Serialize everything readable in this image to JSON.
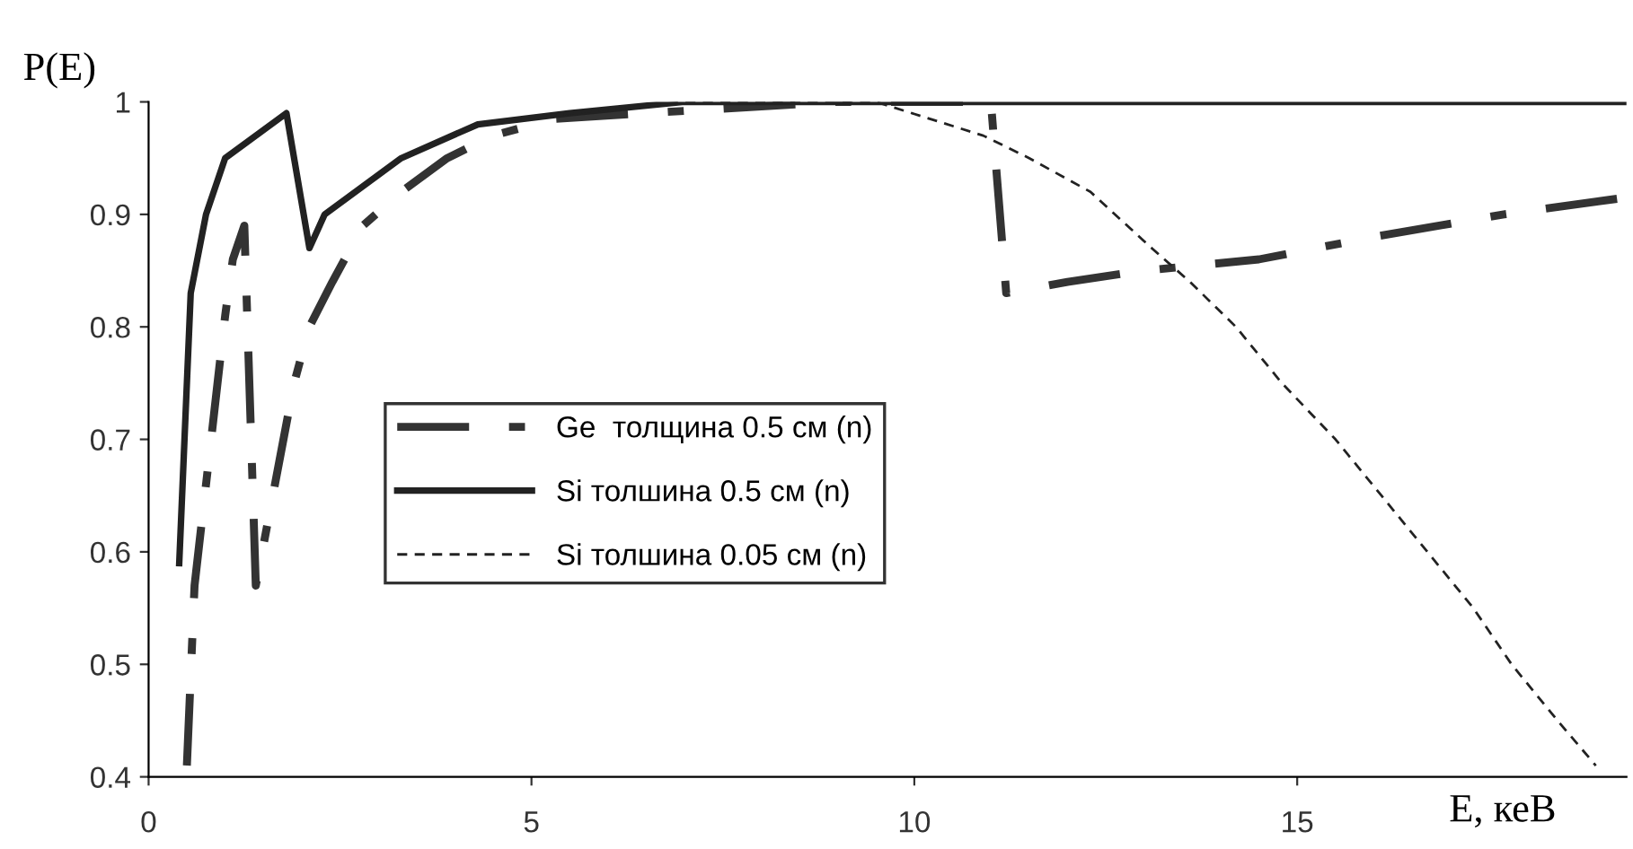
{
  "chart_data": {
    "type": "line",
    "ylabel": "P(E)",
    "xlabel": "E, кеВ",
    "xlim": [
      0,
      19.3
    ],
    "xticks": [
      0,
      5,
      10,
      15
    ],
    "ylim": [
      0.4,
      1
    ],
    "yticks": [
      0.4,
      0.5,
      0.6,
      0.7,
      0.8,
      0.9,
      1
    ],
    "grid": false,
    "legend": "center left",
    "marker": "none",
    "series": [
      {
        "name": "Ge  толщина 0.5 см (n)",
        "color": "#333333",
        "line_style": "dashdot",
        "x": [
          0.5,
          0.6,
          0.75,
          1.0,
          1.1,
          1.25,
          1.4,
          1.9,
          2.1,
          2.4,
          2.8,
          3.3,
          3.9,
          4.5,
          5.3,
          6.5,
          9.0,
          11.0,
          11.2,
          12.0,
          13.0,
          14.5,
          16.0,
          17.7,
          19.3
        ],
        "values": [
          0.41,
          0.57,
          0.66,
          0.81,
          0.86,
          0.89,
          0.57,
          0.75,
          0.8,
          0.84,
          0.89,
          0.92,
          0.95,
          0.97,
          0.985,
          0.99,
          1.0,
          1.0,
          0.83,
          0.84,
          0.85,
          0.86,
          0.88,
          0.9,
          0.915
        ]
      },
      {
        "name": "Si толшина 0.5 см (n)",
        "color": "#222222",
        "line_style": "solid",
        "x": [
          0.4,
          0.55,
          0.75,
          1.0,
          1.8,
          2.1,
          2.3,
          3.3,
          4.3,
          5.5,
          7.0,
          19.3
        ],
        "values": [
          0.59,
          0.83,
          0.9,
          0.95,
          0.99,
          0.87,
          0.9,
          0.95,
          0.98,
          0.99,
          1.0,
          1.0
        ]
      },
      {
        "name": "Si толшина 0.05 см (n)",
        "color": "#222222",
        "line_style": "dashed",
        "x": [
          0.4,
          0.55,
          0.75,
          1.0,
          1.8,
          2.1,
          2.3,
          3.3,
          4.3,
          5.5,
          7.0,
          9.5,
          10.9,
          11.5,
          12.3,
          13.1,
          13.6,
          14.2,
          14.8,
          15.5,
          16.1,
          16.7,
          17.3,
          17.8,
          18.4,
          18.9
        ],
        "values": [
          0.59,
          0.83,
          0.9,
          0.95,
          0.99,
          0.87,
          0.9,
          0.95,
          0.98,
          0.99,
          1.0,
          1.0,
          0.97,
          0.95,
          0.92,
          0.87,
          0.84,
          0.8,
          0.75,
          0.7,
          0.65,
          0.6,
          0.55,
          0.5,
          0.45,
          0.41
        ]
      }
    ]
  }
}
